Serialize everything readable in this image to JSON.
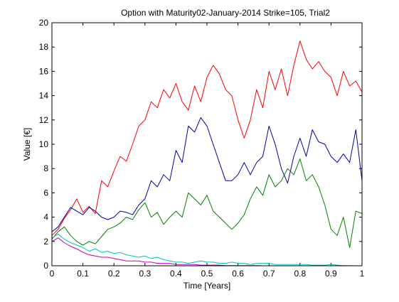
{
  "chart_data": {
    "type": "line",
    "title": "Option with Maturity02-January-2014 Strike=105, Trial2",
    "xlabel": "Time [Years]",
    "ylabel": "Value [€]",
    "xlim": [
      0,
      1
    ],
    "ylim": [
      0,
      20
    ],
    "xticks": [
      "0",
      "0.1",
      "0.2",
      "0.3",
      "0.4",
      "0.5",
      "0.6",
      "0.7",
      "0.8",
      "0.9",
      "1"
    ],
    "yticks": [
      "0",
      "2",
      "4",
      "6",
      "8",
      "10",
      "12",
      "14",
      "16",
      "18",
      "20"
    ],
    "grid": false,
    "series": [
      {
        "color": "#ff0000",
        "x": [
          0,
          0.02,
          0.04,
          0.06,
          0.08,
          0.1,
          0.12,
          0.14,
          0.16,
          0.18,
          0.2,
          0.22,
          0.24,
          0.26,
          0.28,
          0.3,
          0.32,
          0.34,
          0.36,
          0.38,
          0.4,
          0.42,
          0.44,
          0.46,
          0.48,
          0.5,
          0.52,
          0.54,
          0.56,
          0.58,
          0.6,
          0.62,
          0.64,
          0.66,
          0.68,
          0.7,
          0.72,
          0.74,
          0.76,
          0.78,
          0.8,
          0.82,
          0.84,
          0.86,
          0.88,
          0.9,
          0.92,
          0.94,
          0.96,
          0.98,
          1.0
        ],
        "y": [
          2.5,
          3.0,
          3.9,
          4.6,
          5.5,
          4.4,
          4.9,
          4.3,
          7.0,
          6.5,
          7.8,
          9.0,
          8.6,
          10.0,
          11.5,
          12.0,
          13.5,
          13.0,
          14.5,
          13.8,
          15.0,
          13.5,
          12.8,
          14.8,
          13.5,
          15.5,
          16.5,
          15.8,
          14.5,
          14.0,
          12.0,
          10.5,
          12.0,
          14.5,
          13.0,
          16.0,
          14.5,
          16.2,
          14.0,
          16.5,
          18.5,
          17.0,
          16.2,
          16.8,
          16.0,
          15.5,
          14.0,
          16.0,
          14.8,
          15.2,
          14.3
        ]
      },
      {
        "color": "#0000a0",
        "x": [
          0,
          0.02,
          0.04,
          0.06,
          0.08,
          0.1,
          0.12,
          0.14,
          0.16,
          0.18,
          0.2,
          0.22,
          0.24,
          0.26,
          0.28,
          0.3,
          0.32,
          0.34,
          0.36,
          0.38,
          0.4,
          0.42,
          0.44,
          0.46,
          0.48,
          0.5,
          0.52,
          0.54,
          0.56,
          0.58,
          0.6,
          0.62,
          0.64,
          0.66,
          0.68,
          0.7,
          0.72,
          0.74,
          0.76,
          0.78,
          0.8,
          0.82,
          0.84,
          0.86,
          0.88,
          0.9,
          0.92,
          0.94,
          0.96,
          0.98,
          1.0
        ],
        "y": [
          2.8,
          3.2,
          4.0,
          4.8,
          4.5,
          4.2,
          4.8,
          4.5,
          4.0,
          3.8,
          4.0,
          4.5,
          4.4,
          4.2,
          5.0,
          5.5,
          7.0,
          6.5,
          7.5,
          7.0,
          9.5,
          8.5,
          11.5,
          11.0,
          12.2,
          11.5,
          10.0,
          8.5,
          7.0,
          7.0,
          7.5,
          8.5,
          7.5,
          8.5,
          9.0,
          11.5,
          10.0,
          8.0,
          6.8,
          9.0,
          10.5,
          9.0,
          11.2,
          10.2,
          10.0,
          9.0,
          8.5,
          9.2,
          8.5,
          11.2,
          7.0
        ]
      },
      {
        "color": "#008000",
        "x": [
          0,
          0.02,
          0.04,
          0.06,
          0.08,
          0.1,
          0.12,
          0.14,
          0.16,
          0.18,
          0.2,
          0.22,
          0.24,
          0.26,
          0.28,
          0.3,
          0.32,
          0.34,
          0.36,
          0.38,
          0.4,
          0.42,
          0.44,
          0.46,
          0.48,
          0.5,
          0.52,
          0.54,
          0.56,
          0.58,
          0.6,
          0.62,
          0.64,
          0.66,
          0.68,
          0.7,
          0.72,
          0.74,
          0.76,
          0.78,
          0.8,
          0.82,
          0.84,
          0.86,
          0.88,
          0.9,
          0.92,
          0.94,
          0.96,
          0.98,
          1.0
        ],
        "y": [
          2.2,
          2.8,
          3.2,
          2.5,
          2.0,
          1.7,
          2.0,
          1.8,
          2.4,
          3.0,
          3.2,
          3.5,
          4.0,
          3.8,
          4.6,
          5.2,
          4.0,
          4.4,
          3.4,
          4.0,
          4.5,
          4.0,
          6.0,
          5.5,
          5.0,
          5.8,
          4.5,
          4.0,
          3.5,
          3.0,
          3.5,
          4.2,
          5.5,
          6.5,
          5.8,
          7.5,
          6.5,
          7.0,
          8.0,
          7.5,
          8.8,
          7.0,
          7.5,
          6.5,
          5.0,
          3.0,
          2.5,
          4.0,
          1.5,
          4.5,
          4.3
        ]
      },
      {
        "color": "#00bfbf",
        "x": [
          0,
          0.02,
          0.04,
          0.06,
          0.08,
          0.1,
          0.12,
          0.14,
          0.16,
          0.18,
          0.2,
          0.22,
          0.24,
          0.26,
          0.28,
          0.3,
          0.32,
          0.34,
          0.36,
          0.38,
          0.4,
          0.42,
          0.44,
          0.46,
          0.48,
          0.5,
          0.52,
          0.54,
          0.56,
          0.58,
          0.6,
          0.62,
          0.64,
          0.66,
          0.68,
          0.7,
          0.72,
          0.74,
          0.76,
          0.78,
          0.8,
          0.82,
          0.84,
          0.86,
          0.88,
          0.9,
          0.92,
          0.94,
          0.96,
          0.98,
          1.0
        ],
        "y": [
          2.3,
          2.6,
          2.2,
          1.9,
          1.7,
          1.5,
          1.2,
          1.4,
          1.1,
          1.2,
          1.0,
          1.1,
          0.9,
          0.8,
          0.7,
          0.8,
          0.6,
          0.7,
          0.5,
          0.4,
          0.3,
          0.3,
          0.2,
          0.3,
          0.4,
          0.3,
          0.3,
          0.2,
          0.2,
          0.3,
          0.2,
          0.2,
          0.1,
          0.2,
          0.2,
          0.2,
          0.1,
          0.1,
          0.1,
          0.1,
          0.1,
          0.1,
          0.05,
          0.05,
          0.05,
          0.1,
          0.05,
          0.02,
          0.02,
          0.0,
          0.0
        ]
      },
      {
        "color": "#bf00bf",
        "x": [
          0,
          0.02,
          0.04,
          0.06,
          0.08,
          0.1,
          0.12,
          0.14,
          0.16,
          0.18,
          0.2,
          0.22,
          0.24,
          0.26,
          0.28,
          0.3,
          0.32,
          0.34,
          0.36,
          0.38,
          0.4,
          0.42,
          0.44,
          0.46,
          0.48,
          0.5,
          0.52,
          0.54,
          0.56,
          0.58,
          0.6,
          0.62,
          0.64,
          0.66,
          0.68,
          0.7,
          0.72,
          0.74,
          0.76,
          0.78,
          0.8,
          0.82,
          0.84,
          0.86,
          0.88,
          0.9,
          0.92,
          0.94,
          0.96,
          0.98,
          1.0
        ],
        "y": [
          2.0,
          2.3,
          1.9,
          1.6,
          1.4,
          1.1,
          0.9,
          0.8,
          0.7,
          0.7,
          0.6,
          0.5,
          0.4,
          0.4,
          0.4,
          0.3,
          0.3,
          0.2,
          0.2,
          0.2,
          0.1,
          0.1,
          0.1,
          0.1,
          0.05,
          0.05,
          0.05,
          0.05,
          0.02,
          0.02,
          0.02,
          0.01,
          0.01,
          0.01,
          0.0,
          0.0,
          0.0,
          0.0,
          0.0,
          0.0,
          0.0,
          0.0,
          0.0,
          0.0,
          0.0,
          0.0,
          0.0,
          0.0,
          0.0,
          0.0,
          0.0
        ]
      }
    ]
  }
}
